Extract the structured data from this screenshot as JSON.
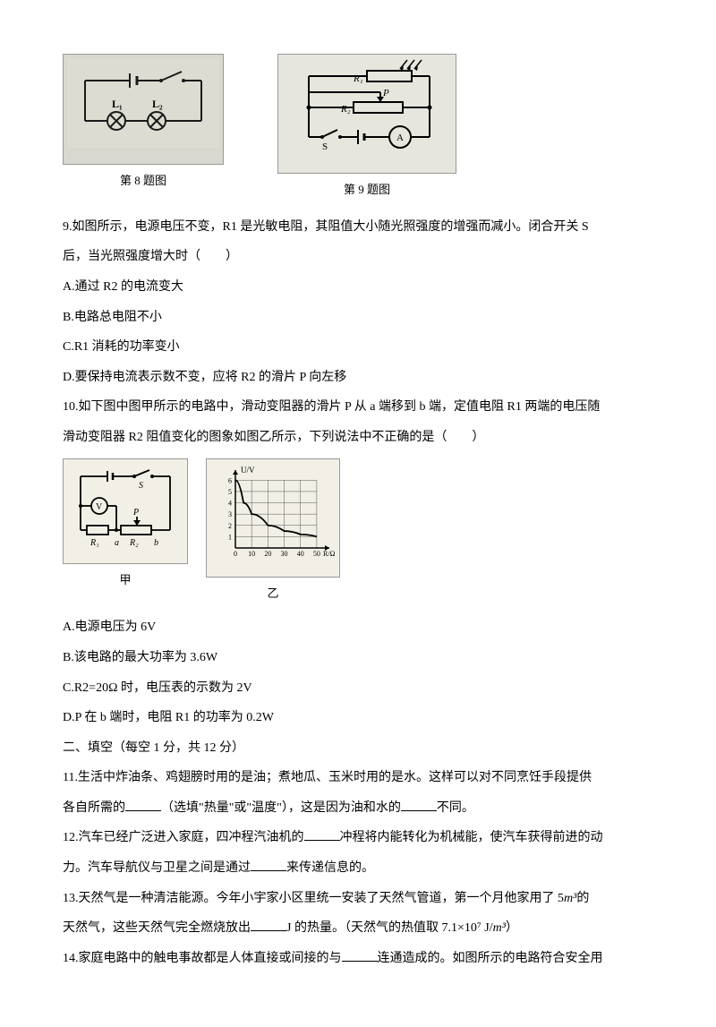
{
  "fig8": {
    "caption": "第 8 题图",
    "labels": {
      "L1": "L₁",
      "L2": "L₂"
    },
    "bg": "#dcdcd2",
    "stroke": "#1a1a1a"
  },
  "fig9": {
    "caption": "第 9 题图",
    "labels": {
      "R1": "R₁",
      "R2": "R₂",
      "P": "P",
      "S": "S",
      "A": "A"
    },
    "bg": "#e6e6de",
    "stroke": "#1a1a1a"
  },
  "q9": {
    "stem": "9.如图所示，电源电压不变，R1 是光敏电阻，其阻值大小随光照强度的增强而减小。闭合开关 S",
    "stem2": "后，当光照强度增大时（　　）",
    "A": "A.通过 R2 的电流变大",
    "B": "B.电路总电阻不小",
    "C": "C.R1 消耗的功率变小",
    "D": "D.要保持电流表示数不变，应将 R2 的滑片 P 向左移"
  },
  "q10": {
    "stem1": "10.如下图中图甲所示的电路中，滑动变阻器的滑片 P 从 a 端移到 b 端，定值电阻 R1 两端的电压随",
    "stem2": "滑动变阻器 R2 阻值变化的图象如图乙所示，下列说法中不正确的是（　　）",
    "A": "A.电源电压为 6V",
    "B": "B.该电路的最大功率为 3.6W",
    "C": "C.R2=20Ω 时，电压表的示数为 2V",
    "D": "D.P 在 b 端时，电阻 R1 的功率为 0.2W"
  },
  "chart": {
    "bg": "#f2efe6",
    "grid": "#555",
    "curve": "#000",
    "xlabel": "R/Ω",
    "ylabel": "U/V",
    "xticks": [
      "0",
      "10",
      "20",
      "30",
      "40",
      "50"
    ],
    "yticks": [
      "1",
      "2",
      "3",
      "4",
      "5",
      "6"
    ],
    "xlim": [
      0,
      55
    ],
    "ylim": [
      0,
      6.5
    ],
    "points": [
      [
        0,
        6
      ],
      [
        5,
        4
      ],
      [
        10,
        3
      ],
      [
        20,
        2
      ],
      [
        30,
        1.5
      ],
      [
        40,
        1.2
      ],
      [
        50,
        1
      ]
    ],
    "caption_left": "甲",
    "caption_right": "乙",
    "circuit_labels": {
      "S": "S",
      "V": "V",
      "R1": "R₁",
      "a": "a",
      "R2": "R₂",
      "b": "b",
      "P": "P"
    }
  },
  "section2": "二、填空（每空 1 分，共 12 分）",
  "q11": {
    "p1": "11.生活中炸油条、鸡翅膀时用的是油；煮地瓜、玉米时用的是水。这样可以对不同烹饪手段提供",
    "p2a": "各自所需的",
    "p2b": "（选填\"热量\"或\"温度\"），这是因为油和水的",
    "p2c": "不同。"
  },
  "q12": {
    "p1a": "12.汽车已经广泛进入家庭，四冲程汽油机的",
    "p1b": "冲程将内能转化为机械能，使汽车获得前进的动",
    "p2a": "力。汽车导航仪与卫星之间是通过",
    "p2b": "来传递信息的。"
  },
  "q13": {
    "p1a": "13.天然气是一种清洁能源。今年小宇家小区里统一安装了天然气管道，第一个月他家用了 5",
    "p1unit": "m³",
    "p1b": "的",
    "p2a": "天然气，这些天然气完全燃烧放出",
    "p2b": "J 的热量。（天然气的热值取 7.1",
    "p2c": "×10⁷",
    "p2d": " J/",
    "p2unit": "m³",
    "p2e": "）"
  },
  "q14": {
    "p1a": "14.家庭电路中的触电事故都是人体直接或间接的与",
    "p1b": "连通造成的。如图所示的电路符合安全用"
  }
}
